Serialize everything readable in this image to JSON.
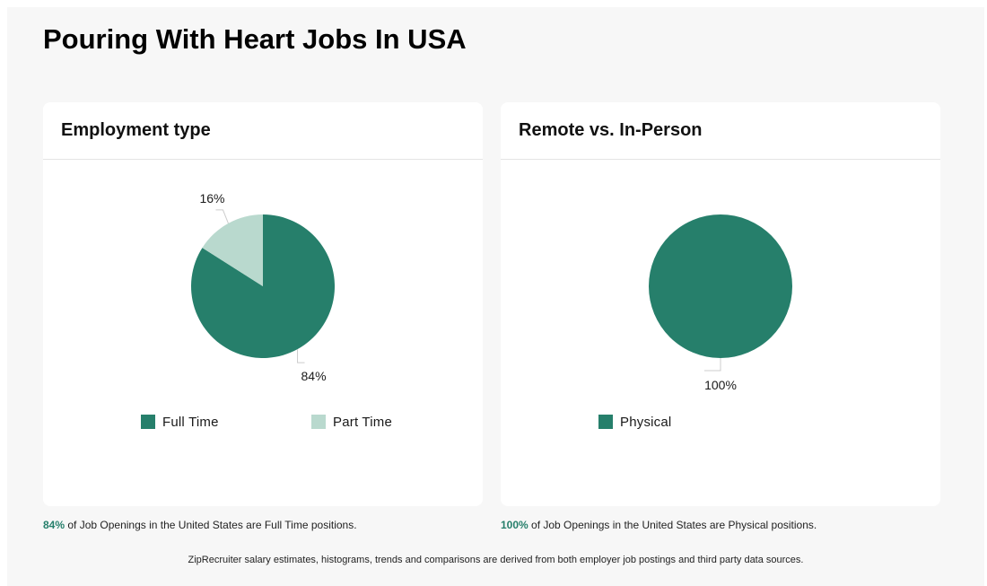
{
  "page": {
    "title": "Pouring With Heart Jobs In USA",
    "footnote": "ZipRecruiter salary estimates, histograms, trends and comparisons are derived from both employer job postings and third party data sources."
  },
  "colors": {
    "primary": "#267f6b",
    "secondary": "#b9d9ce",
    "background": "#f7f7f7",
    "card": "#ffffff"
  },
  "chart_data": [
    {
      "type": "pie",
      "title": "Employment type",
      "categories": [
        "Full Time",
        "Part Time"
      ],
      "values": [
        84,
        16
      ],
      "value_labels": [
        "84%",
        "16%"
      ],
      "colors": [
        "#267f6b",
        "#b9d9ce"
      ],
      "legend": "bottom",
      "summary": {
        "percent": "84%",
        "text": " of Job Openings in the United States are Full Time positions."
      }
    },
    {
      "type": "pie",
      "title": "Remote vs. In-Person",
      "categories": [
        "Physical"
      ],
      "values": [
        100
      ],
      "value_labels": [
        "100%"
      ],
      "colors": [
        "#267f6b"
      ],
      "legend": "bottom",
      "summary": {
        "percent": "100%",
        "text": " of Job Openings in the United States are Physical positions."
      }
    }
  ]
}
